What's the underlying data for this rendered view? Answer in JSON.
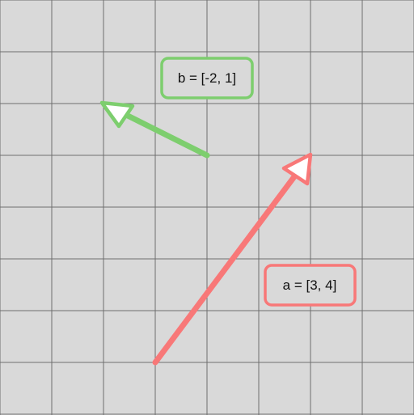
{
  "background_color": "#d9d9d9",
  "grid_color": "#6e6e6e",
  "vectors": [
    {
      "id": "a",
      "label": "a = [3, 4]",
      "components": [
        3,
        4
      ],
      "color": "#f87878"
    },
    {
      "id": "b",
      "label": "b = [-2, 1]",
      "components": [
        -2,
        1
      ],
      "color": "#7dce6e"
    }
  ]
}
